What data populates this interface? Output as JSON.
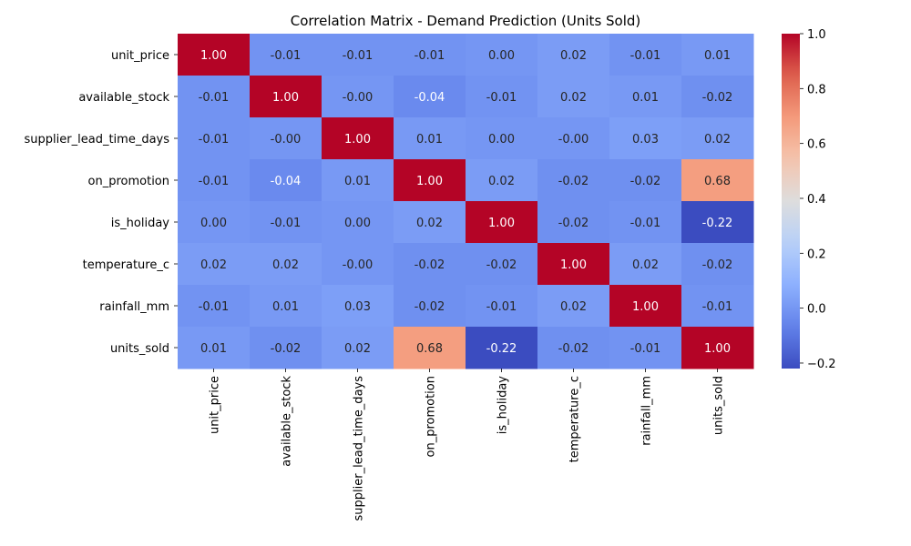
{
  "chart_data": {
    "type": "heatmap",
    "title": "Correlation Matrix - Demand Prediction (Units Sold)",
    "variables": [
      "unit_price",
      "available_stock",
      "supplier_lead_time_days",
      "on_promotion",
      "is_holiday",
      "temperature_c",
      "rainfall_mm",
      "units_sold"
    ],
    "values": [
      [
        1.0,
        -0.01,
        -0.01,
        -0.01,
        0.0,
        0.02,
        -0.01,
        0.01
      ],
      [
        -0.01,
        1.0,
        -0.0,
        -0.04,
        -0.01,
        0.02,
        0.01,
        -0.02
      ],
      [
        -0.01,
        -0.0,
        1.0,
        0.01,
        0.0,
        -0.0,
        0.03,
        0.02
      ],
      [
        -0.01,
        -0.04,
        0.01,
        1.0,
        0.02,
        -0.02,
        -0.02,
        0.68
      ],
      [
        0.0,
        -0.01,
        0.0,
        0.02,
        1.0,
        -0.02,
        -0.01,
        -0.22
      ],
      [
        0.02,
        0.02,
        -0.0,
        -0.02,
        -0.02,
        1.0,
        0.02,
        -0.02
      ],
      [
        -0.01,
        0.01,
        0.03,
        -0.02,
        -0.01,
        0.02,
        1.0,
        -0.01
      ],
      [
        0.01,
        -0.02,
        0.02,
        0.68,
        -0.22,
        -0.02,
        -0.01,
        1.0
      ]
    ],
    "labels": [
      [
        "1.00",
        "-0.01",
        "-0.01",
        "-0.01",
        "0.00",
        "0.02",
        "-0.01",
        "0.01"
      ],
      [
        "-0.01",
        "1.00",
        "-0.00",
        "-0.04",
        "-0.01",
        "0.02",
        "0.01",
        "-0.02"
      ],
      [
        "-0.01",
        "-0.00",
        "1.00",
        "0.01",
        "0.00",
        "-0.00",
        "0.03",
        "0.02"
      ],
      [
        "-0.01",
        "-0.04",
        "0.01",
        "1.00",
        "0.02",
        "-0.02",
        "-0.02",
        "0.68"
      ],
      [
        "0.00",
        "-0.01",
        "0.00",
        "0.02",
        "1.00",
        "-0.02",
        "-0.01",
        "-0.22"
      ],
      [
        "0.02",
        "0.02",
        "-0.00",
        "-0.02",
        "-0.02",
        "1.00",
        "0.02",
        "-0.02"
      ],
      [
        "-0.01",
        "0.01",
        "0.03",
        "-0.02",
        "-0.01",
        "0.02",
        "1.00",
        "-0.01"
      ],
      [
        "0.01",
        "-0.02",
        "0.02",
        "0.68",
        "-0.22",
        "-0.02",
        "-0.01",
        "1.00"
      ]
    ],
    "colormap": "coolwarm",
    "vmin": -0.22,
    "vmax": 1.0,
    "colorbar_ticks": [
      -0.2,
      0.0,
      0.2,
      0.4,
      0.6,
      0.8,
      1.0
    ],
    "colorbar_tick_labels": [
      "−0.2",
      "0.0",
      "0.2",
      "0.4",
      "0.6",
      "0.8",
      "1.0"
    ],
    "grid": false,
    "colorbar_placement": "right"
  }
}
